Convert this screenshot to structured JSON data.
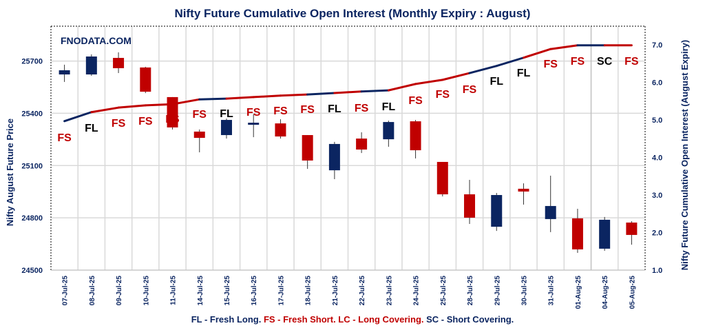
{
  "chart_data": {
    "type": "candlestick+line",
    "title": "Nifty Future Cumulative Open Interest (Monthly Expiry : August)",
    "watermark": "FNODATA.COM",
    "ylabel_left": "Nifty August Future Price",
    "ylabel_right": "Nifty Future Cumulative Open Interest (August Expiry)",
    "ylim_left": [
      24500,
      25900
    ],
    "yticks_left": [
      "24500",
      "24800",
      "25100",
      "25400",
      "25700"
    ],
    "ylim_right": [
      1.0,
      7.5
    ],
    "yticks_right": [
      "1.0",
      "2.0",
      "3.0",
      "4.0",
      "5.0",
      "6.0",
      "7.0"
    ],
    "grid": true,
    "categories": [
      "07-Jul-25",
      "08-Jul-25",
      "09-Jul-25",
      "10-Jul-25",
      "11-Jul-25",
      "14-Jul-25",
      "15-Jul-25",
      "16-Jul-25",
      "17-Jul-25",
      "18-Jul-25",
      "21-Jul-25",
      "22-Jul-25",
      "23-Jul-25",
      "24-Jul-25",
      "25-Jul-25",
      "28-Jul-25",
      "29-Jul-25",
      "30-Jul-25",
      "31-Jul-25",
      "01-Aug-25",
      "04-Aug-25",
      "05-Aug-25"
    ],
    "ohlc": [
      [
        25623,
        25679,
        25580,
        25647
      ],
      [
        25623,
        25738,
        25615,
        25726
      ],
      [
        25718,
        25750,
        25631,
        25659
      ],
      [
        25663,
        25667,
        25516,
        25524
      ],
      [
        25493,
        25493,
        25307,
        25319
      ],
      [
        25295,
        25307,
        25176,
        25259
      ],
      [
        25275,
        25370,
        25255,
        25362
      ],
      [
        25335,
        25394,
        25263,
        25346
      ],
      [
        25342,
        25366,
        25255,
        25267
      ],
      [
        25275,
        25275,
        25081,
        25129
      ],
      [
        25073,
        25236,
        25022,
        25224
      ],
      [
        25255,
        25291,
        25172,
        25192
      ],
      [
        25251,
        25358,
        25208,
        25350
      ],
      [
        25354,
        25362,
        25141,
        25188
      ],
      [
        25121,
        25121,
        24923,
        24935
      ],
      [
        24935,
        25018,
        24765,
        24801
      ],
      [
        24749,
        24943,
        24725,
        24931
      ],
      [
        24967,
        24998,
        24876,
        24951
      ],
      [
        24793,
        25042,
        24718,
        24868
      ],
      [
        24797,
        24852,
        24599,
        24619
      ],
      [
        24623,
        24805,
        24611,
        24789
      ],
      [
        24773,
        24781,
        24646,
        24702
      ]
    ],
    "open_interest": [
      4.97,
      5.21,
      5.33,
      5.39,
      5.42,
      5.55,
      5.57,
      5.61,
      5.65,
      5.68,
      5.72,
      5.76,
      5.79,
      5.96,
      6.07,
      6.25,
      6.44,
      6.66,
      6.89,
      6.99,
      6.99,
      6.99
    ],
    "signals": [
      "FS",
      "FL",
      "FS",
      "FS",
      "FS",
      "FS",
      "FL",
      "FS",
      "FS",
      "FS",
      "FL",
      "FS",
      "FL",
      "FS",
      "FS",
      "FS",
      "FL",
      "FL",
      "FS",
      "FS",
      "SC",
      "FS"
    ],
    "colors": {
      "up": "#0b2561",
      "down": "#c00000",
      "FL": "#0b2561",
      "FS": "#c00000",
      "SC": "#0b2561",
      "LC": "#c00000",
      "signal_text_FL": "#000000",
      "signal_text_SC": "#000000",
      "signal_text_FS": "#c00000"
    }
  },
  "legend": {
    "fl": "FL - Fresh Long.",
    "fs_lc": "FS - Fresh Short. LC - Long Covering.",
    "sc": "SC - Short Covering."
  }
}
